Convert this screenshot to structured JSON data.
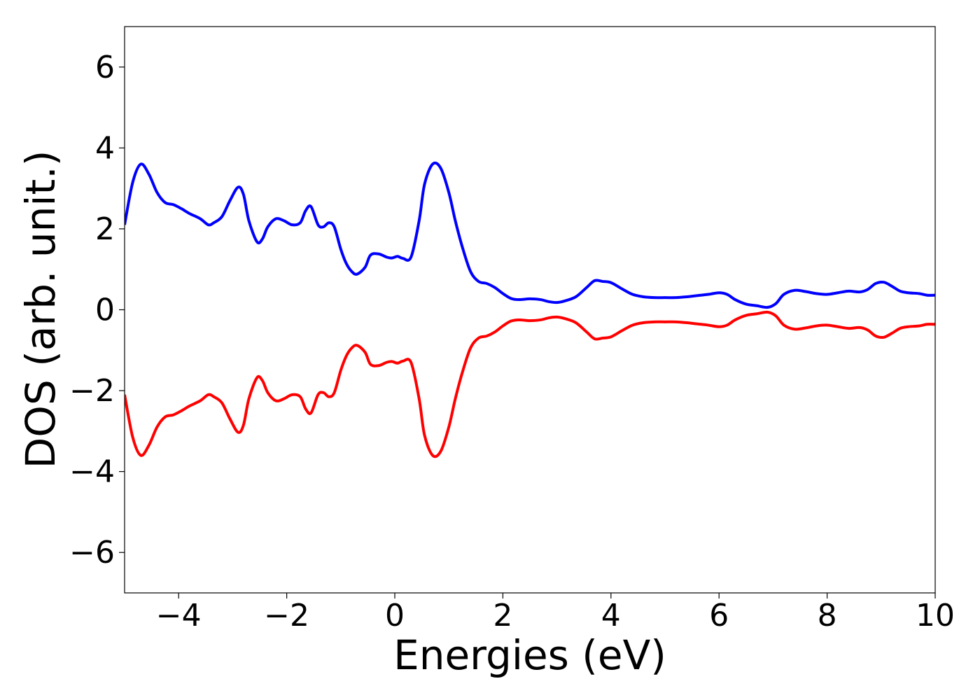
{
  "chart_data": {
    "type": "line",
    "title": "",
    "xlabel": "Energies (eV)",
    "ylabel": "DOS (arb. unit.)",
    "xlim": [
      -5,
      10
    ],
    "ylim": [
      -7,
      7
    ],
    "grid": false,
    "x_ticks": [
      -4,
      -2,
      0,
      2,
      4,
      6,
      8,
      10
    ],
    "x_tick_labels": [
      "−4",
      "−2",
      "0",
      "2",
      "4",
      "6",
      "8",
      "10"
    ],
    "y_ticks": [
      -6,
      -4,
      -2,
      0,
      2,
      4,
      6
    ],
    "y_tick_labels": [
      "−6",
      "−4",
      "−2",
      "0",
      "2",
      "4",
      "6"
    ],
    "series": [
      {
        "color": "#0000ff",
        "x": [
          -5.0,
          -4.85,
          -4.7,
          -4.55,
          -4.4,
          -4.25,
          -4.1,
          -3.95,
          -3.8,
          -3.6,
          -3.45,
          -3.35,
          -3.2,
          -3.05,
          -2.9,
          -2.8,
          -2.7,
          -2.55,
          -2.45,
          -2.35,
          -2.2,
          -2.05,
          -1.9,
          -1.75,
          -1.65,
          -1.55,
          -1.42,
          -1.32,
          -1.22,
          -1.12,
          -1.0,
          -0.9,
          -0.8,
          -0.7,
          -0.55,
          -0.45,
          -0.3,
          -0.15,
          -0.05,
          0.05,
          0.15,
          0.3,
          0.45,
          0.55,
          0.7,
          0.85,
          1.0,
          1.12,
          1.25,
          1.4,
          1.55,
          1.7,
          1.85,
          2.0,
          2.15,
          2.3,
          2.5,
          2.7,
          2.85,
          3.0,
          3.15,
          3.35,
          3.55,
          3.7,
          3.85,
          4.0,
          4.2,
          4.4,
          4.6,
          4.8,
          5.0,
          5.2,
          5.4,
          5.6,
          5.8,
          6.0,
          6.15,
          6.3,
          6.5,
          6.7,
          6.9,
          7.05,
          7.2,
          7.4,
          7.6,
          7.8,
          8.0,
          8.2,
          8.4,
          8.6,
          8.75,
          8.9,
          9.05,
          9.2,
          9.35,
          9.5,
          9.7,
          9.85,
          10.0
        ],
        "values": [
          2.1,
          3.15,
          3.6,
          3.35,
          2.9,
          2.65,
          2.6,
          2.5,
          2.38,
          2.25,
          2.1,
          2.15,
          2.3,
          2.7,
          3.03,
          2.85,
          2.2,
          1.68,
          1.75,
          2.05,
          2.25,
          2.2,
          2.1,
          2.15,
          2.45,
          2.55,
          2.1,
          2.05,
          2.15,
          2.05,
          1.5,
          1.15,
          0.95,
          0.88,
          1.05,
          1.35,
          1.38,
          1.3,
          1.28,
          1.32,
          1.27,
          1.3,
          2.2,
          3.1,
          3.6,
          3.5,
          2.9,
          2.2,
          1.55,
          0.95,
          0.7,
          0.65,
          0.55,
          0.4,
          0.28,
          0.25,
          0.27,
          0.25,
          0.2,
          0.18,
          0.22,
          0.32,
          0.55,
          0.72,
          0.7,
          0.67,
          0.52,
          0.38,
          0.32,
          0.3,
          0.3,
          0.3,
          0.32,
          0.35,
          0.38,
          0.42,
          0.38,
          0.25,
          0.14,
          0.1,
          0.06,
          0.15,
          0.38,
          0.48,
          0.45,
          0.4,
          0.38,
          0.42,
          0.46,
          0.44,
          0.5,
          0.65,
          0.68,
          0.58,
          0.46,
          0.42,
          0.4,
          0.36,
          0.36
        ]
      },
      {
        "color": "#ff0000",
        "x": [
          -5.0,
          -4.85,
          -4.7,
          -4.55,
          -4.4,
          -4.25,
          -4.1,
          -3.95,
          -3.8,
          -3.6,
          -3.45,
          -3.35,
          -3.2,
          -3.05,
          -2.9,
          -2.8,
          -2.7,
          -2.55,
          -2.45,
          -2.35,
          -2.2,
          -2.05,
          -1.9,
          -1.75,
          -1.65,
          -1.55,
          -1.42,
          -1.32,
          -1.22,
          -1.12,
          -1.0,
          -0.9,
          -0.8,
          -0.7,
          -0.55,
          -0.45,
          -0.3,
          -0.15,
          -0.05,
          0.05,
          0.15,
          0.3,
          0.45,
          0.55,
          0.7,
          0.85,
          1.0,
          1.12,
          1.25,
          1.4,
          1.55,
          1.7,
          1.85,
          2.0,
          2.15,
          2.3,
          2.5,
          2.7,
          2.85,
          3.0,
          3.15,
          3.35,
          3.55,
          3.7,
          3.85,
          4.0,
          4.2,
          4.4,
          4.6,
          4.8,
          5.0,
          5.2,
          5.4,
          5.6,
          5.8,
          6.0,
          6.15,
          6.3,
          6.5,
          6.7,
          6.9,
          7.05,
          7.2,
          7.4,
          7.6,
          7.8,
          8.0,
          8.2,
          8.4,
          8.6,
          8.75,
          8.9,
          9.05,
          9.2,
          9.35,
          9.5,
          9.7,
          9.85,
          10.0
        ],
        "values": [
          -2.1,
          -3.15,
          -3.6,
          -3.35,
          -2.9,
          -2.65,
          -2.6,
          -2.5,
          -2.38,
          -2.25,
          -2.1,
          -2.15,
          -2.3,
          -2.7,
          -3.03,
          -2.85,
          -2.2,
          -1.68,
          -1.75,
          -2.05,
          -2.25,
          -2.2,
          -2.1,
          -2.15,
          -2.45,
          -2.55,
          -2.1,
          -2.05,
          -2.15,
          -2.05,
          -1.5,
          -1.15,
          -0.95,
          -0.88,
          -1.05,
          -1.35,
          -1.38,
          -1.3,
          -1.28,
          -1.32,
          -1.27,
          -1.3,
          -2.2,
          -3.1,
          -3.6,
          -3.5,
          -2.9,
          -2.2,
          -1.55,
          -0.95,
          -0.7,
          -0.65,
          -0.55,
          -0.4,
          -0.28,
          -0.25,
          -0.27,
          -0.25,
          -0.2,
          -0.18,
          -0.22,
          -0.32,
          -0.55,
          -0.72,
          -0.7,
          -0.67,
          -0.52,
          -0.38,
          -0.32,
          -0.3,
          -0.3,
          -0.3,
          -0.32,
          -0.35,
          -0.38,
          -0.42,
          -0.38,
          -0.25,
          -0.14,
          -0.1,
          -0.06,
          -0.15,
          -0.38,
          -0.48,
          -0.45,
          -0.4,
          -0.38,
          -0.42,
          -0.46,
          -0.44,
          -0.5,
          -0.65,
          -0.68,
          -0.58,
          -0.46,
          -0.42,
          -0.4,
          -0.36,
          -0.36
        ]
      }
    ]
  }
}
